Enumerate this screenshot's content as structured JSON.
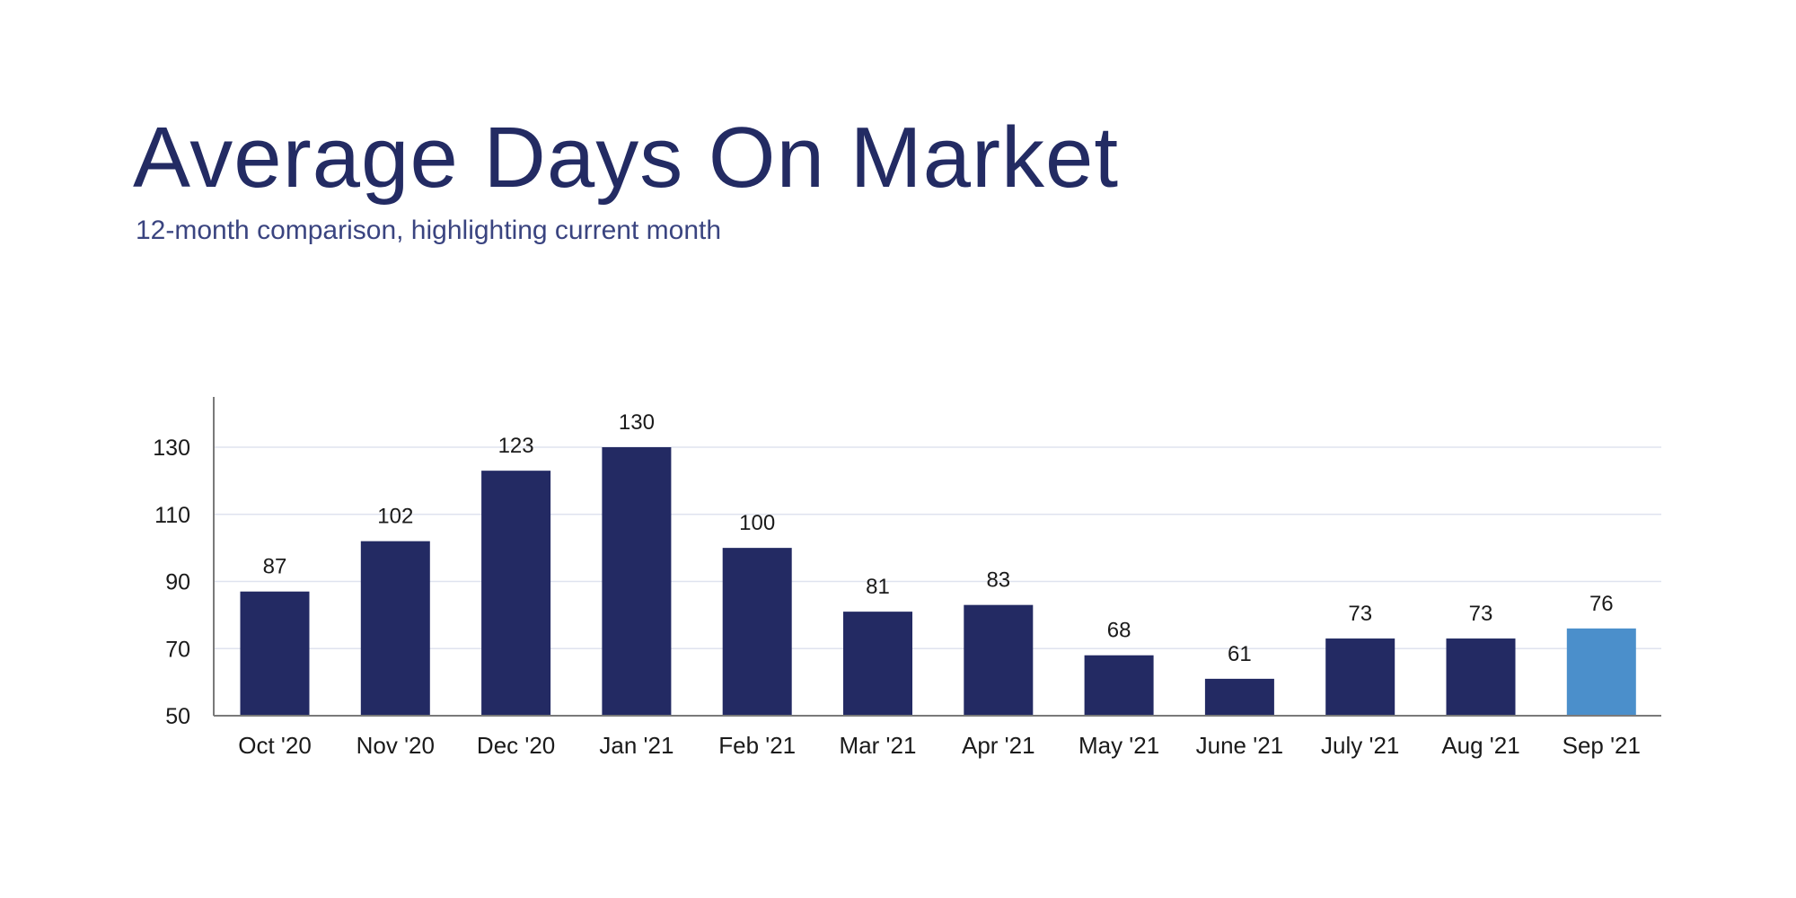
{
  "title": "Average Days On Market",
  "subtitle": "12-month comparison, highlighting current month",
  "colors": {
    "title": "#232b63",
    "bar": "#232a63",
    "highlight": "#4b8fcb",
    "grid": "#dfe3ef",
    "axis": "#7a7a7a"
  },
  "chart_data": {
    "type": "bar",
    "title": "Average Days On Market",
    "subtitle": "12-month comparison, highlighting current month",
    "xlabel": "",
    "ylabel": "",
    "categories": [
      "Oct '20",
      "Nov '20",
      "Dec '20",
      "Jan '21",
      "Feb '21",
      "Mar '21",
      "Apr '21",
      "May '21",
      "June '21",
      "July '21",
      "Aug '21",
      "Sep '21"
    ],
    "values": [
      87,
      102,
      123,
      130,
      100,
      81,
      83,
      68,
      61,
      73,
      73,
      76
    ],
    "ylim": [
      50,
      145
    ],
    "yticks": [
      50,
      70,
      90,
      110,
      130
    ],
    "grid": true,
    "highlight_category": "Sep '21",
    "data_labels": true
  }
}
